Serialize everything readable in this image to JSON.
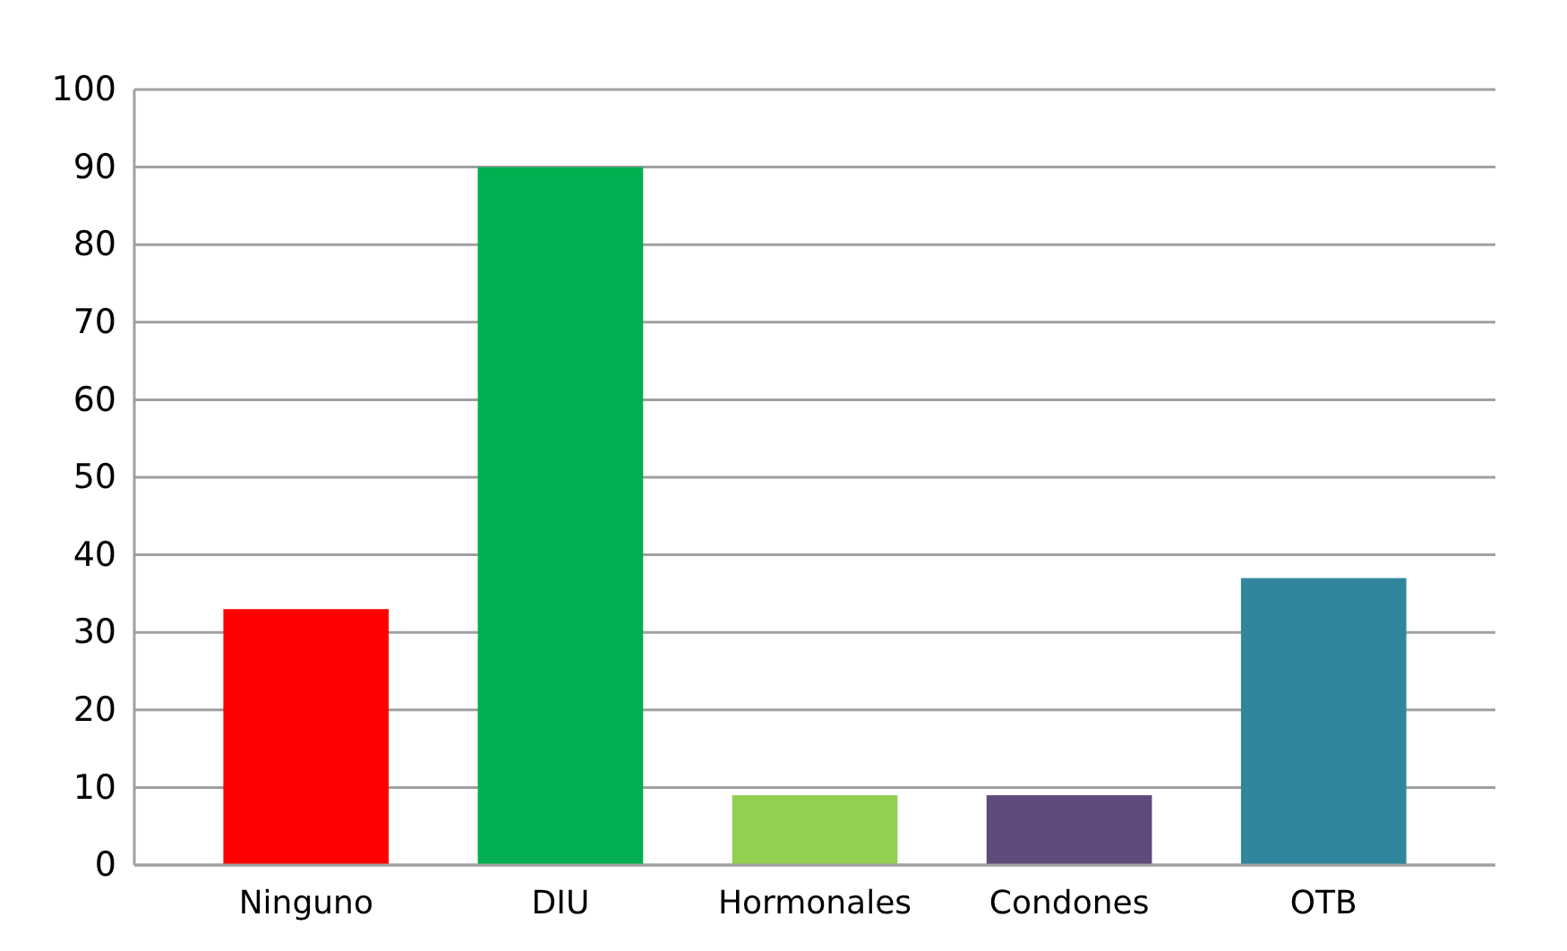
{
  "chart_data": {
    "type": "bar",
    "categories": [
      "Ninguno",
      "DIU",
      "Hormonales",
      "Condones",
      "OTB"
    ],
    "values": [
      33,
      90,
      9,
      9,
      37
    ],
    "colors": [
      "#ff0000",
      "#00b050",
      "#92d050",
      "#604a7b",
      "#31859c"
    ],
    "ylim": [
      0,
      100
    ],
    "yticks": [
      0,
      10,
      20,
      30,
      40,
      50,
      60,
      70,
      80,
      90,
      100
    ],
    "grid": true
  }
}
